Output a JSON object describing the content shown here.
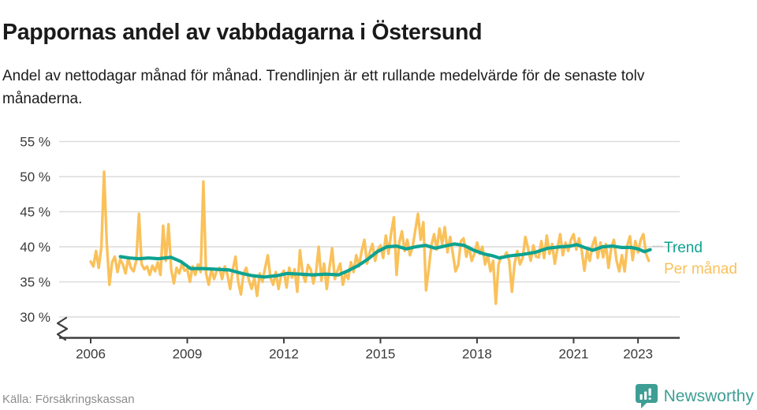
{
  "header": {
    "title": "Pappornas andel av vabbdagarna i Östersund",
    "subtitle": "Andel av nettodagar månad för månad. Trendlinjen är ett rullande medelvärde för de senaste tolv månaderna."
  },
  "legend": {
    "trend_label": "Trend",
    "monthly_label": "Per månad"
  },
  "footer": {
    "source": "Källa: Försäkringskassan",
    "brand": "Newsworthy"
  },
  "colors": {
    "monthly": "#FAC15A",
    "trend": "#0FA291",
    "grid": "#DCDCDC",
    "axis": "#3E3E3E",
    "tick_text": "#3A3A3A",
    "muted_text": "#8C8C8C",
    "brand": "#3E9E94",
    "title_text": "#1A1A1A",
    "leader": "#C8C8C8"
  },
  "chart_data": {
    "type": "line",
    "title": "Pappornas andel av vabbdagarna i Östersund",
    "subtitle": "Andel av nettodagar månad för månad. Trendlinjen är ett rullande medelvärde för de senaste tolv månaderna.",
    "unit": "%",
    "source": "Källa: Försäkringskassan",
    "grid": true,
    "legend_position": "right-of-line-end",
    "y_axis_break": true,
    "ylim": [
      29.5,
      56.5
    ],
    "x_range": [
      2006.0,
      2023.42
    ],
    "x_tick_years": [
      2006,
      2009,
      2012,
      2015,
      2018,
      2021,
      2023
    ],
    "x_tick_labels": [
      "2006",
      "2009",
      "2012",
      "2015",
      "2018",
      "2021",
      "2023"
    ],
    "y_tick_values": [
      55,
      50,
      45,
      40,
      35,
      30
    ],
    "y_tick_labels": [
      "55 %",
      "50 %",
      "45 %",
      "40 %",
      "35 %",
      "30 %"
    ],
    "series": [
      {
        "name": "Per månad",
        "kind": "monthly",
        "start_month": "2006-01",
        "end_month": "2023-05",
        "color_key": "monthly",
        "values": [
          37.9,
          37.2,
          39.4,
          37.0,
          40.0,
          50.7,
          40.5,
          34.6,
          37.8,
          38.6,
          36.4,
          38.2,
          37.5,
          36.2,
          38.4,
          37.0,
          36.5,
          38.0,
          44.7,
          37.5,
          36.8,
          37.2,
          36.0,
          37.3,
          36.5,
          37.8,
          36.0,
          43.0,
          38.0,
          43.2,
          36.8,
          34.8,
          37.0,
          36.2,
          37.6,
          36.6,
          36.8,
          35.0,
          37.2,
          36.0,
          37.5,
          36.4,
          49.3,
          36.2,
          34.6,
          36.8,
          35.4,
          36.6,
          37.0,
          35.4,
          37.2,
          36.0,
          34.0,
          36.8,
          38.6,
          35.0,
          33.2,
          36.2,
          37.0,
          35.2,
          34.0,
          35.6,
          33.0,
          36.2,
          35.0,
          37.0,
          38.8,
          35.6,
          34.6,
          36.4,
          34.0,
          36.0,
          36.6,
          34.2,
          37.0,
          35.6,
          36.8,
          33.6,
          39.5,
          36.2,
          35.0,
          37.4,
          36.8,
          34.8,
          36.4,
          40.0,
          35.2,
          37.6,
          34.0,
          37.0,
          39.8,
          35.4,
          36.6,
          37.6,
          34.6,
          36.2,
          35.4,
          37.8,
          36.4,
          38.8,
          37.2,
          39.4,
          41.0,
          37.6,
          39.2,
          40.4,
          38.0,
          39.6,
          40.2,
          38.4,
          41.6,
          39.0,
          42.0,
          44.2,
          36.0,
          40.6,
          42.2,
          39.4,
          41.0,
          38.8,
          40.0,
          42.4,
          44.7,
          41.0,
          43.5,
          33.8,
          36.8,
          40.2,
          41.8,
          39.6,
          42.6,
          40.4,
          42.8,
          39.2,
          41.4,
          39.0,
          36.5,
          37.4,
          40.8,
          41.2,
          38.6,
          40.0,
          38.0,
          39.0,
          40.6,
          39.0,
          40.0,
          37.5,
          38.8,
          36.5,
          38.0,
          31.9,
          37.5,
          38.6,
          38.5,
          39.2,
          38.0,
          33.6,
          37.6,
          39.4,
          37.5,
          38.4,
          41.4,
          39.8,
          38.0,
          40.2,
          38.6,
          38.5,
          40.8,
          38.4,
          41.6,
          39.0,
          40.4,
          37.6,
          39.8,
          41.8,
          38.8,
          40.6,
          39.4,
          41.0,
          41.8,
          39.6,
          41.2,
          39.5,
          36.6,
          39.4,
          38.0,
          40.2,
          41.3,
          38.4,
          40.6,
          38.5,
          40.4,
          37.0,
          39.8,
          41.0,
          38.0,
          36.5,
          38.8,
          36.5,
          40.2,
          41.5,
          38.1,
          40.8,
          39.2,
          41.0,
          41.8,
          39.0,
          38.0
        ]
      },
      {
        "name": "Trend",
        "kind": "rolling-12-month-mean",
        "color_key": "trend",
        "points": [
          [
            2006.92,
            38.6
          ],
          [
            2007.2,
            38.4
          ],
          [
            2007.5,
            38.3
          ],
          [
            2007.8,
            38.4
          ],
          [
            2008.1,
            38.3
          ],
          [
            2008.5,
            38.5
          ],
          [
            2008.8,
            37.9
          ],
          [
            2009.1,
            36.9
          ],
          [
            2009.5,
            36.9
          ],
          [
            2009.9,
            36.8
          ],
          [
            2010.3,
            36.7
          ],
          [
            2010.7,
            36.2
          ],
          [
            2011.0,
            35.9
          ],
          [
            2011.4,
            35.7
          ],
          [
            2011.8,
            35.9
          ],
          [
            2012.1,
            36.2
          ],
          [
            2012.5,
            36.1
          ],
          [
            2012.9,
            36.0
          ],
          [
            2013.3,
            36.1
          ],
          [
            2013.7,
            36.0
          ],
          [
            2014.0,
            36.6
          ],
          [
            2014.3,
            37.3
          ],
          [
            2014.6,
            38.2
          ],
          [
            2014.9,
            39.3
          ],
          [
            2015.2,
            40.0
          ],
          [
            2015.5,
            40.1
          ],
          [
            2015.8,
            39.7
          ],
          [
            2016.1,
            40.0
          ],
          [
            2016.4,
            40.2
          ],
          [
            2016.7,
            39.8
          ],
          [
            2017.0,
            40.1
          ],
          [
            2017.3,
            40.4
          ],
          [
            2017.6,
            40.2
          ],
          [
            2017.9,
            39.5
          ],
          [
            2018.2,
            39.0
          ],
          [
            2018.5,
            38.7
          ],
          [
            2018.7,
            38.4
          ],
          [
            2019.0,
            38.7
          ],
          [
            2019.4,
            38.9
          ],
          [
            2019.8,
            39.2
          ],
          [
            2020.2,
            39.8
          ],
          [
            2020.6,
            40.0
          ],
          [
            2020.9,
            40.1
          ],
          [
            2021.1,
            40.3
          ],
          [
            2021.4,
            39.8
          ],
          [
            2021.6,
            39.5
          ],
          [
            2021.9,
            40.0
          ],
          [
            2022.2,
            40.1
          ],
          [
            2022.5,
            39.9
          ],
          [
            2022.8,
            39.9
          ],
          [
            2023.0,
            39.7
          ],
          [
            2023.2,
            39.3
          ],
          [
            2023.38,
            39.6
          ]
        ]
      }
    ]
  }
}
